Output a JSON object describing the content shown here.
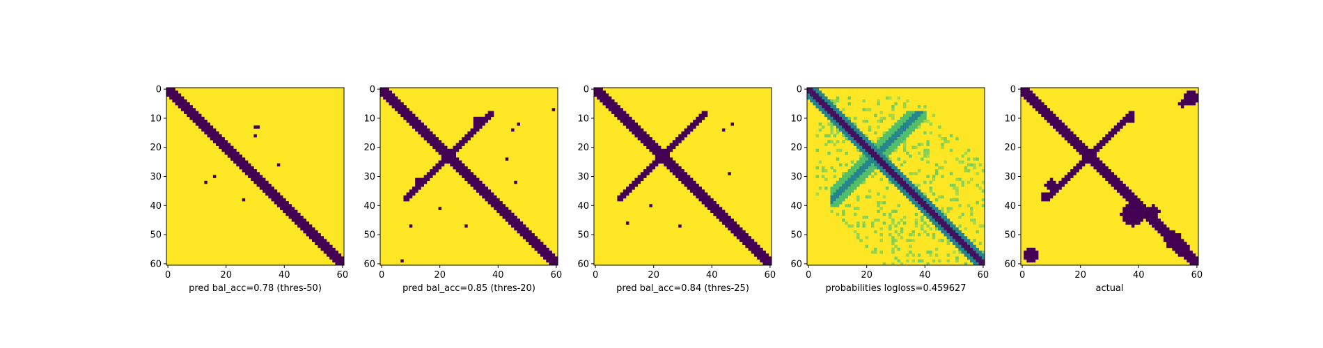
{
  "chart_data": [
    {
      "type": "heatmap",
      "xlabel": "pred bal_acc=0.78 (thres-50)",
      "xticks": [
        0,
        20,
        40,
        60
      ],
      "yticks": [
        0,
        10,
        20,
        30,
        40,
        50,
        60
      ],
      "xlim": [
        0,
        60
      ],
      "ylim": [
        60,
        0
      ],
      "grid": false,
      "binary": true,
      "features": {
        "diagonal_halfwidth": 2,
        "off_diagonal_blobs": [
          {
            "x": 30.5,
            "y": 13,
            "r": 0.6
          },
          {
            "x": 30,
            "y": 16,
            "r": 0.6
          },
          {
            "x": 38,
            "y": 26,
            "r": 0.6
          },
          {
            "x": 16,
            "y": 30,
            "r": 0.8
          },
          {
            "x": 13,
            "y": 32,
            "r": 0.6
          },
          {
            "x": 26,
            "y": 38,
            "r": 0.6
          }
        ]
      }
    },
    {
      "type": "heatmap",
      "xlabel": "pred bal_acc=0.85 (thres-20)",
      "xticks": [
        0,
        20,
        40,
        60
      ],
      "yticks": [
        0,
        10,
        20,
        30,
        40,
        50,
        60
      ],
      "xlim": [
        0,
        60
      ],
      "ylim": [
        60,
        0
      ],
      "grid": false,
      "binary": true,
      "features": {
        "diagonal_halfwidth": 2.5,
        "anti_diagonal_strength": 1,
        "off_diagonal_blobs": [
          {
            "x": 33,
            "y": 11,
            "r": 1.5
          },
          {
            "x": 45,
            "y": 14,
            "r": 0.7
          },
          {
            "x": 47,
            "y": 12,
            "r": 0.6
          },
          {
            "x": 59,
            "y": 7,
            "r": 0.6
          },
          {
            "x": 13,
            "y": 32,
            "r": 1.5
          },
          {
            "x": 46,
            "y": 32,
            "r": 0.8
          },
          {
            "x": 43,
            "y": 24,
            "r": 0.6
          },
          {
            "x": 20,
            "y": 41,
            "r": 0.7
          },
          {
            "x": 10,
            "y": 47,
            "r": 0.8
          },
          {
            "x": 29,
            "y": 47,
            "r": 0.6
          },
          {
            "x": 7,
            "y": 59,
            "r": 0.5
          }
        ]
      }
    },
    {
      "type": "heatmap",
      "xlabel": "pred bal_acc=0.84 (thres-25)",
      "xticks": [
        0,
        20,
        40,
        60
      ],
      "yticks": [
        0,
        10,
        20,
        30,
        40,
        50,
        60
      ],
      "xlim": [
        0,
        60
      ],
      "ylim": [
        60,
        0
      ],
      "grid": false,
      "binary": true,
      "features": {
        "diagonal_halfwidth": 2.5,
        "anti_diagonal_strength": 0.75,
        "off_diagonal_blobs": [
          {
            "x": 47,
            "y": 12,
            "r": 0.6
          },
          {
            "x": 44,
            "y": 14,
            "r": 0.6
          },
          {
            "x": 46,
            "y": 29,
            "r": 0.6
          },
          {
            "x": 19,
            "y": 40,
            "r": 0.6
          },
          {
            "x": 11,
            "y": 46,
            "r": 0.6
          },
          {
            "x": 29,
            "y": 47,
            "r": 0.6
          }
        ]
      }
    },
    {
      "type": "heatmap",
      "xlabel": "probabilities logloss=0.459627",
      "xticks": [
        0,
        20,
        40,
        60
      ],
      "yticks": [
        0,
        10,
        20,
        30,
        40,
        50,
        60
      ],
      "xlim": [
        0,
        60
      ],
      "ylim": [
        60,
        0
      ],
      "grid": false,
      "binary": false,
      "colormap": "viridis",
      "features": {
        "diagonal_halfwidth": 2,
        "anti_diagonal_strength": 0.55
      }
    },
    {
      "type": "heatmap",
      "xlabel": "actual",
      "xticks": [
        0,
        20,
        40,
        60
      ],
      "yticks": [
        0,
        10,
        20,
        30,
        40,
        50,
        60
      ],
      "xlim": [
        0,
        60
      ],
      "ylim": [
        60,
        0
      ],
      "grid": false,
      "binary": true,
      "features": {
        "diagonal_halfwidth": 2,
        "anti_diagonal_strength": 1,
        "off_diagonal_blobs": [
          {
            "x": 37,
            "y": 10,
            "r": 1.5
          },
          {
            "x": 58,
            "y": 3,
            "r": 2.5
          },
          {
            "x": 55,
            "y": 5,
            "r": 1.2
          },
          {
            "x": 38,
            "y": 43,
            "r": 4
          },
          {
            "x": 45,
            "y": 42,
            "r": 2
          },
          {
            "x": 52,
            "y": 52,
            "r": 3
          },
          {
            "x": 55,
            "y": 55,
            "r": 2.5
          },
          {
            "x": 3,
            "y": 57,
            "r": 2.5
          },
          {
            "x": 10,
            "y": 33,
            "r": 2
          },
          {
            "x": 8,
            "y": 37,
            "r": 1.5
          }
        ]
      }
    }
  ],
  "colors": {
    "high": "#fde725",
    "low": "#440154",
    "axes": "#000000",
    "viridis": [
      "#440154",
      "#3b528b",
      "#21918c",
      "#5ec962",
      "#fde725"
    ]
  }
}
